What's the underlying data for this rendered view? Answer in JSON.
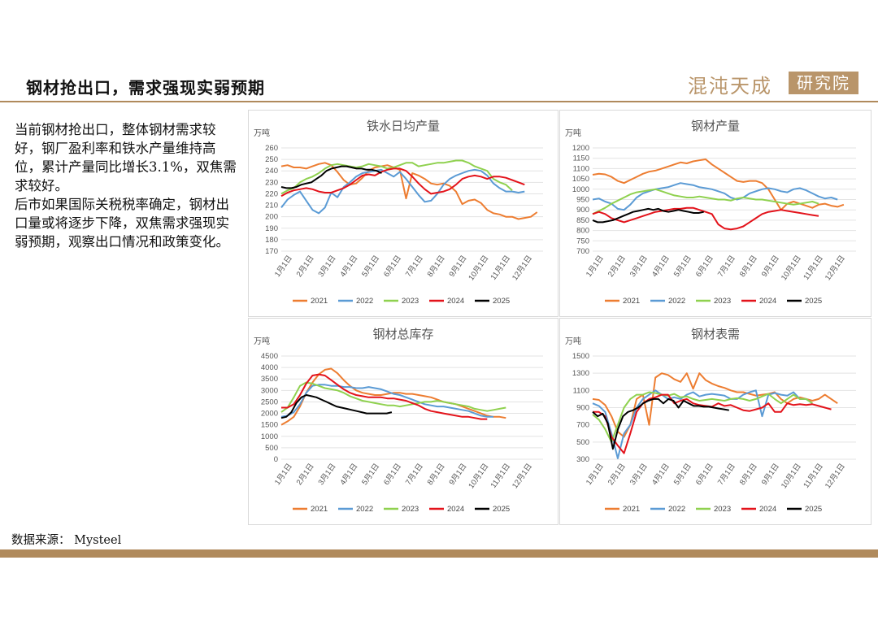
{
  "header": {
    "title": "钢材抢出口，需求强现实弱预期",
    "logo_text": "混沌天成",
    "logo_box_text": "研究院"
  },
  "body_text": "当前钢材抢出口，整体钢材需求较好，钢厂盈利率和铁水产量维持高位，累计产量同比增长3.1%，双焦需求较好。\n后市如果国际关税税率确定，钢材出口量或将逐步下降，双焦需求强现实弱预期，观察出口情况和政策变化。",
  "source": "数据来源： Mysteel",
  "colors": {
    "2021": "#ed7d31",
    "2022": "#5b9bd5",
    "2023": "#8fd14f",
    "2024": "#e3131b",
    "2025": "#000000",
    "accent": "#b08a5c"
  },
  "chart_data": [
    {
      "type": "line",
      "title": "铁水日均产量",
      "unit": "万吨",
      "ylim": [
        170,
        260
      ],
      "yticks": [
        170,
        180,
        190,
        200,
        210,
        220,
        230,
        240,
        250,
        260
      ],
      "x_labels": [
        "1月1日",
        "2月1日",
        "3月1日",
        "4月1日",
        "5月1日",
        "6月1日",
        "7月1日",
        "8月1日",
        "9月1日",
        "10月1日",
        "11月1日",
        "12月1日"
      ],
      "series": [
        {
          "name": "2021",
          "values": [
            244,
            245,
            243,
            243,
            242,
            244,
            246,
            247,
            245,
            239,
            232,
            228,
            229,
            234,
            240,
            243,
            244,
            245,
            243,
            241,
            216,
            238,
            236,
            233,
            229,
            228,
            229,
            227,
            222,
            211,
            214,
            215,
            212,
            206,
            203,
            202,
            200,
            200,
            198,
            199,
            200,
            204
          ]
        },
        {
          "name": "2022",
          "values": [
            208,
            215,
            219,
            222,
            214,
            206,
            203,
            208,
            221,
            217,
            226,
            230,
            235,
            238,
            239,
            240,
            241,
            238,
            235,
            239,
            233,
            226,
            219,
            213,
            214,
            220,
            228,
            233,
            236,
            238,
            240,
            241,
            240,
            236,
            229,
            225,
            222,
            222,
            221,
            222
          ]
        },
        {
          "name": "2023",
          "values": [
            220,
            223,
            225,
            230,
            233,
            235,
            238,
            242,
            245,
            246,
            245,
            244,
            243,
            244,
            246,
            245,
            244,
            242,
            243,
            245,
            247,
            247,
            244,
            245,
            246,
            247,
            247,
            248,
            249,
            249,
            247,
            244,
            242,
            240,
            233,
            230,
            228,
            223
          ]
        },
        {
          "name": "2024",
          "values": [
            218,
            221,
            223,
            224,
            225,
            224,
            222,
            221,
            221,
            223,
            225,
            228,
            232,
            236,
            237,
            236,
            239,
            241,
            242,
            242,
            240,
            235,
            229,
            224,
            220,
            221,
            222,
            224,
            228,
            233,
            235,
            236,
            235,
            233,
            235,
            235,
            234,
            232,
            230,
            228
          ]
        },
        {
          "name": "2025",
          "values": [
            226,
            225,
            225,
            226,
            228,
            229,
            230,
            233,
            236,
            240,
            242,
            243,
            244,
            244,
            243,
            242,
            242,
            241,
            241,
            240,
            238
          ]
        }
      ]
    },
    {
      "type": "line",
      "title": "钢材产量",
      "unit": "万吨",
      "ylim": [
        700,
        1200
      ],
      "yticks": [
        700,
        750,
        800,
        850,
        900,
        950,
        1000,
        1050,
        1100,
        1150,
        1200
      ],
      "x_labels": [
        "1月1日",
        "2月1日",
        "3月1日",
        "4月1日",
        "5月1日",
        "6月1日",
        "7月1日",
        "8月1日",
        "9月1日",
        "10月1日",
        "11月1日",
        "12月1日"
      ],
      "series": [
        {
          "name": "2021",
          "values": [
            1070,
            1075,
            1072,
            1060,
            1040,
            1030,
            1045,
            1060,
            1075,
            1085,
            1090,
            1100,
            1110,
            1120,
            1130,
            1125,
            1135,
            1140,
            1145,
            1120,
            1100,
            1080,
            1060,
            1040,
            1035,
            1040,
            1040,
            1030,
            1000,
            950,
            900,
            930,
            940,
            930,
            920,
            910,
            925,
            930,
            920,
            915,
            925
          ]
        },
        {
          "name": "2022",
          "values": [
            950,
            955,
            940,
            930,
            905,
            900,
            925,
            960,
            980,
            990,
            1000,
            1005,
            1010,
            1020,
            1030,
            1025,
            1020,
            1010,
            1005,
            1000,
            990,
            980,
            960,
            950,
            960,
            980,
            990,
            1000,
            1005,
            1000,
            990,
            985,
            1000,
            1005,
            995,
            980,
            965,
            955,
            960,
            950
          ]
        },
        {
          "name": "2023",
          "values": [
            880,
            895,
            910,
            930,
            945,
            960,
            975,
            985,
            990,
            995,
            1000,
            990,
            980,
            970,
            965,
            960,
            960,
            965,
            960,
            955,
            950,
            950,
            945,
            955,
            960,
            955,
            950,
            950,
            945,
            940,
            935,
            930,
            925,
            930,
            935,
            940,
            930
          ]
        },
        {
          "name": "2024",
          "values": [
            880,
            890,
            880,
            860,
            850,
            840,
            850,
            860,
            870,
            880,
            890,
            895,
            900,
            905,
            905,
            910,
            910,
            900,
            890,
            880,
            830,
            810,
            805,
            810,
            820,
            840,
            860,
            880,
            890,
            895,
            900,
            895,
            890,
            885,
            880,
            875,
            870
          ]
        },
        {
          "name": "2025",
          "values": [
            850,
            840,
            840,
            845,
            850,
            860,
            870,
            880,
            890,
            895,
            900,
            905,
            900,
            905,
            895,
            890,
            895,
            900,
            895,
            890,
            885,
            885,
            890
          ]
        }
      ]
    },
    {
      "type": "line",
      "title": "钢材总库存",
      "unit": "万吨",
      "ylim": [
        0,
        4500
      ],
      "yticks": [
        0,
        500,
        1000,
        1500,
        2000,
        2500,
        3000,
        3500,
        4000,
        4500
      ],
      "x_labels": [
        "1月1日",
        "2月1日",
        "3月1日",
        "4月1日",
        "5月1日",
        "6月1日",
        "7月1日",
        "8月1日",
        "9月1日",
        "10月1日",
        "11月1日",
        "12月1日"
      ],
      "series": [
        {
          "name": "2021",
          "values": [
            1500,
            1650,
            1850,
            2300,
            2900,
            3350,
            3700,
            3900,
            3950,
            3750,
            3450,
            3200,
            3000,
            2900,
            2850,
            2800,
            2800,
            2850,
            2900,
            2900,
            2850,
            2850,
            2800,
            2750,
            2700,
            2600,
            2500,
            2450,
            2400,
            2300,
            2200,
            2100,
            2000,
            1900,
            1850,
            1850,
            1800
          ]
        },
        {
          "name": "2022",
          "values": [
            1850,
            1900,
            2050,
            2400,
            2900,
            3200,
            3250,
            3250,
            3200,
            3200,
            3150,
            3150,
            3100,
            3100,
            3150,
            3100,
            3050,
            2950,
            2850,
            2800,
            2700,
            2600,
            2500,
            2400,
            2350,
            2300,
            2300,
            2250,
            2200,
            2150,
            2100,
            2000,
            1900,
            1850,
            1850
          ]
        },
        {
          "name": "2023",
          "values": [
            2050,
            2250,
            2700,
            3200,
            3350,
            3300,
            3200,
            3100,
            3050,
            3000,
            2900,
            2750,
            2650,
            2550,
            2500,
            2450,
            2400,
            2350,
            2350,
            2300,
            2350,
            2400,
            2450,
            2500,
            2500,
            2550,
            2500,
            2450,
            2400,
            2350,
            2300,
            2200,
            2150,
            2100,
            2150,
            2200,
            2250
          ]
        },
        {
          "name": "2024",
          "values": [
            2250,
            2250,
            2400,
            2800,
            3300,
            3650,
            3700,
            3650,
            3450,
            3250,
            3050,
            2900,
            2800,
            2750,
            2700,
            2700,
            2700,
            2650,
            2650,
            2600,
            2550,
            2450,
            2350,
            2200,
            2100,
            2050,
            2000,
            1950,
            1900,
            1850,
            1850,
            1800,
            1750,
            1750
          ]
        },
        {
          "name": "2025",
          "values": [
            1800,
            1850,
            2050,
            2450,
            2700,
            2800,
            2750,
            2700,
            2600,
            2500,
            2400,
            2300,
            2250,
            2200,
            2150,
            2100,
            2050,
            2000,
            2000,
            2000,
            2000,
            2000,
            2050
          ]
        }
      ]
    },
    {
      "type": "line",
      "title": "钢材表需",
      "unit": "万吨",
      "ylim": [
        300,
        1500
      ],
      "yticks": [
        300,
        500,
        700,
        900,
        1100,
        1300,
        1500
      ],
      "x_labels": [
        "1月1日",
        "2月1日",
        "3月1日",
        "4月1日",
        "5月1日",
        "6月1日",
        "7月1日",
        "8月1日",
        "9月1日",
        "10月1日",
        "11月1日",
        "12月1日"
      ],
      "series": [
        {
          "name": "2021",
          "values": [
            1000,
            990,
            930,
            800,
            620,
            560,
            700,
            1000,
            1050,
            700,
            1250,
            1300,
            1280,
            1230,
            1200,
            1300,
            1120,
            1300,
            1220,
            1180,
            1150,
            1130,
            1100,
            1080,
            1080,
            1060,
            1040,
            1050,
            1060,
            1080,
            1000,
            950,
            1000,
            1020,
            1000,
            980,
            1000,
            1050,
            1000,
            950
          ]
        },
        {
          "name": "2022",
          "values": [
            950,
            920,
            850,
            600,
            310,
            600,
            700,
            900,
            1000,
            1050,
            1100,
            1050,
            1000,
            1020,
            1000,
            1050,
            1080,
            1030,
            1050,
            1060,
            1050,
            1040,
            1000,
            1000,
            1050,
            1080,
            1100,
            800,
            1050,
            1070,
            1050,
            1040,
            1080,
            1000,
            1000,
            950
          ]
        },
        {
          "name": "2023",
          "values": [
            820,
            760,
            650,
            500,
            700,
            900,
            1000,
            1050,
            1050,
            1080,
            1070,
            1050,
            1040,
            1060,
            1020,
            1030,
            1000,
            980,
            990,
            1000,
            990,
            980,
            1000,
            1010,
            1000,
            980,
            1000,
            1030,
            1060,
            1000,
            950,
            1000,
            1050,
            1000,
            1000,
            950
          ]
        },
        {
          "name": "2024",
          "values": [
            850,
            850,
            800,
            560,
            460,
            370,
            600,
            850,
            950,
            1000,
            1020,
            1050,
            1050,
            950,
            980,
            1000,
            950,
            930,
            920,
            910,
            950,
            920,
            930,
            900,
            870,
            860,
            880,
            900,
            950,
            850,
            850,
            950,
            930,
            940,
            930,
            940,
            920,
            900,
            880
          ]
        },
        {
          "name": "2025",
          "values": [
            850,
            800,
            830,
            720,
            420,
            650,
            800,
            850,
            870,
            900,
            950,
            980,
            1000,
            1000,
            950,
            1000,
            980,
            900,
            980,
            950,
            920,
            920,
            910,
            910,
            900,
            890,
            880,
            870
          ]
        }
      ]
    }
  ]
}
